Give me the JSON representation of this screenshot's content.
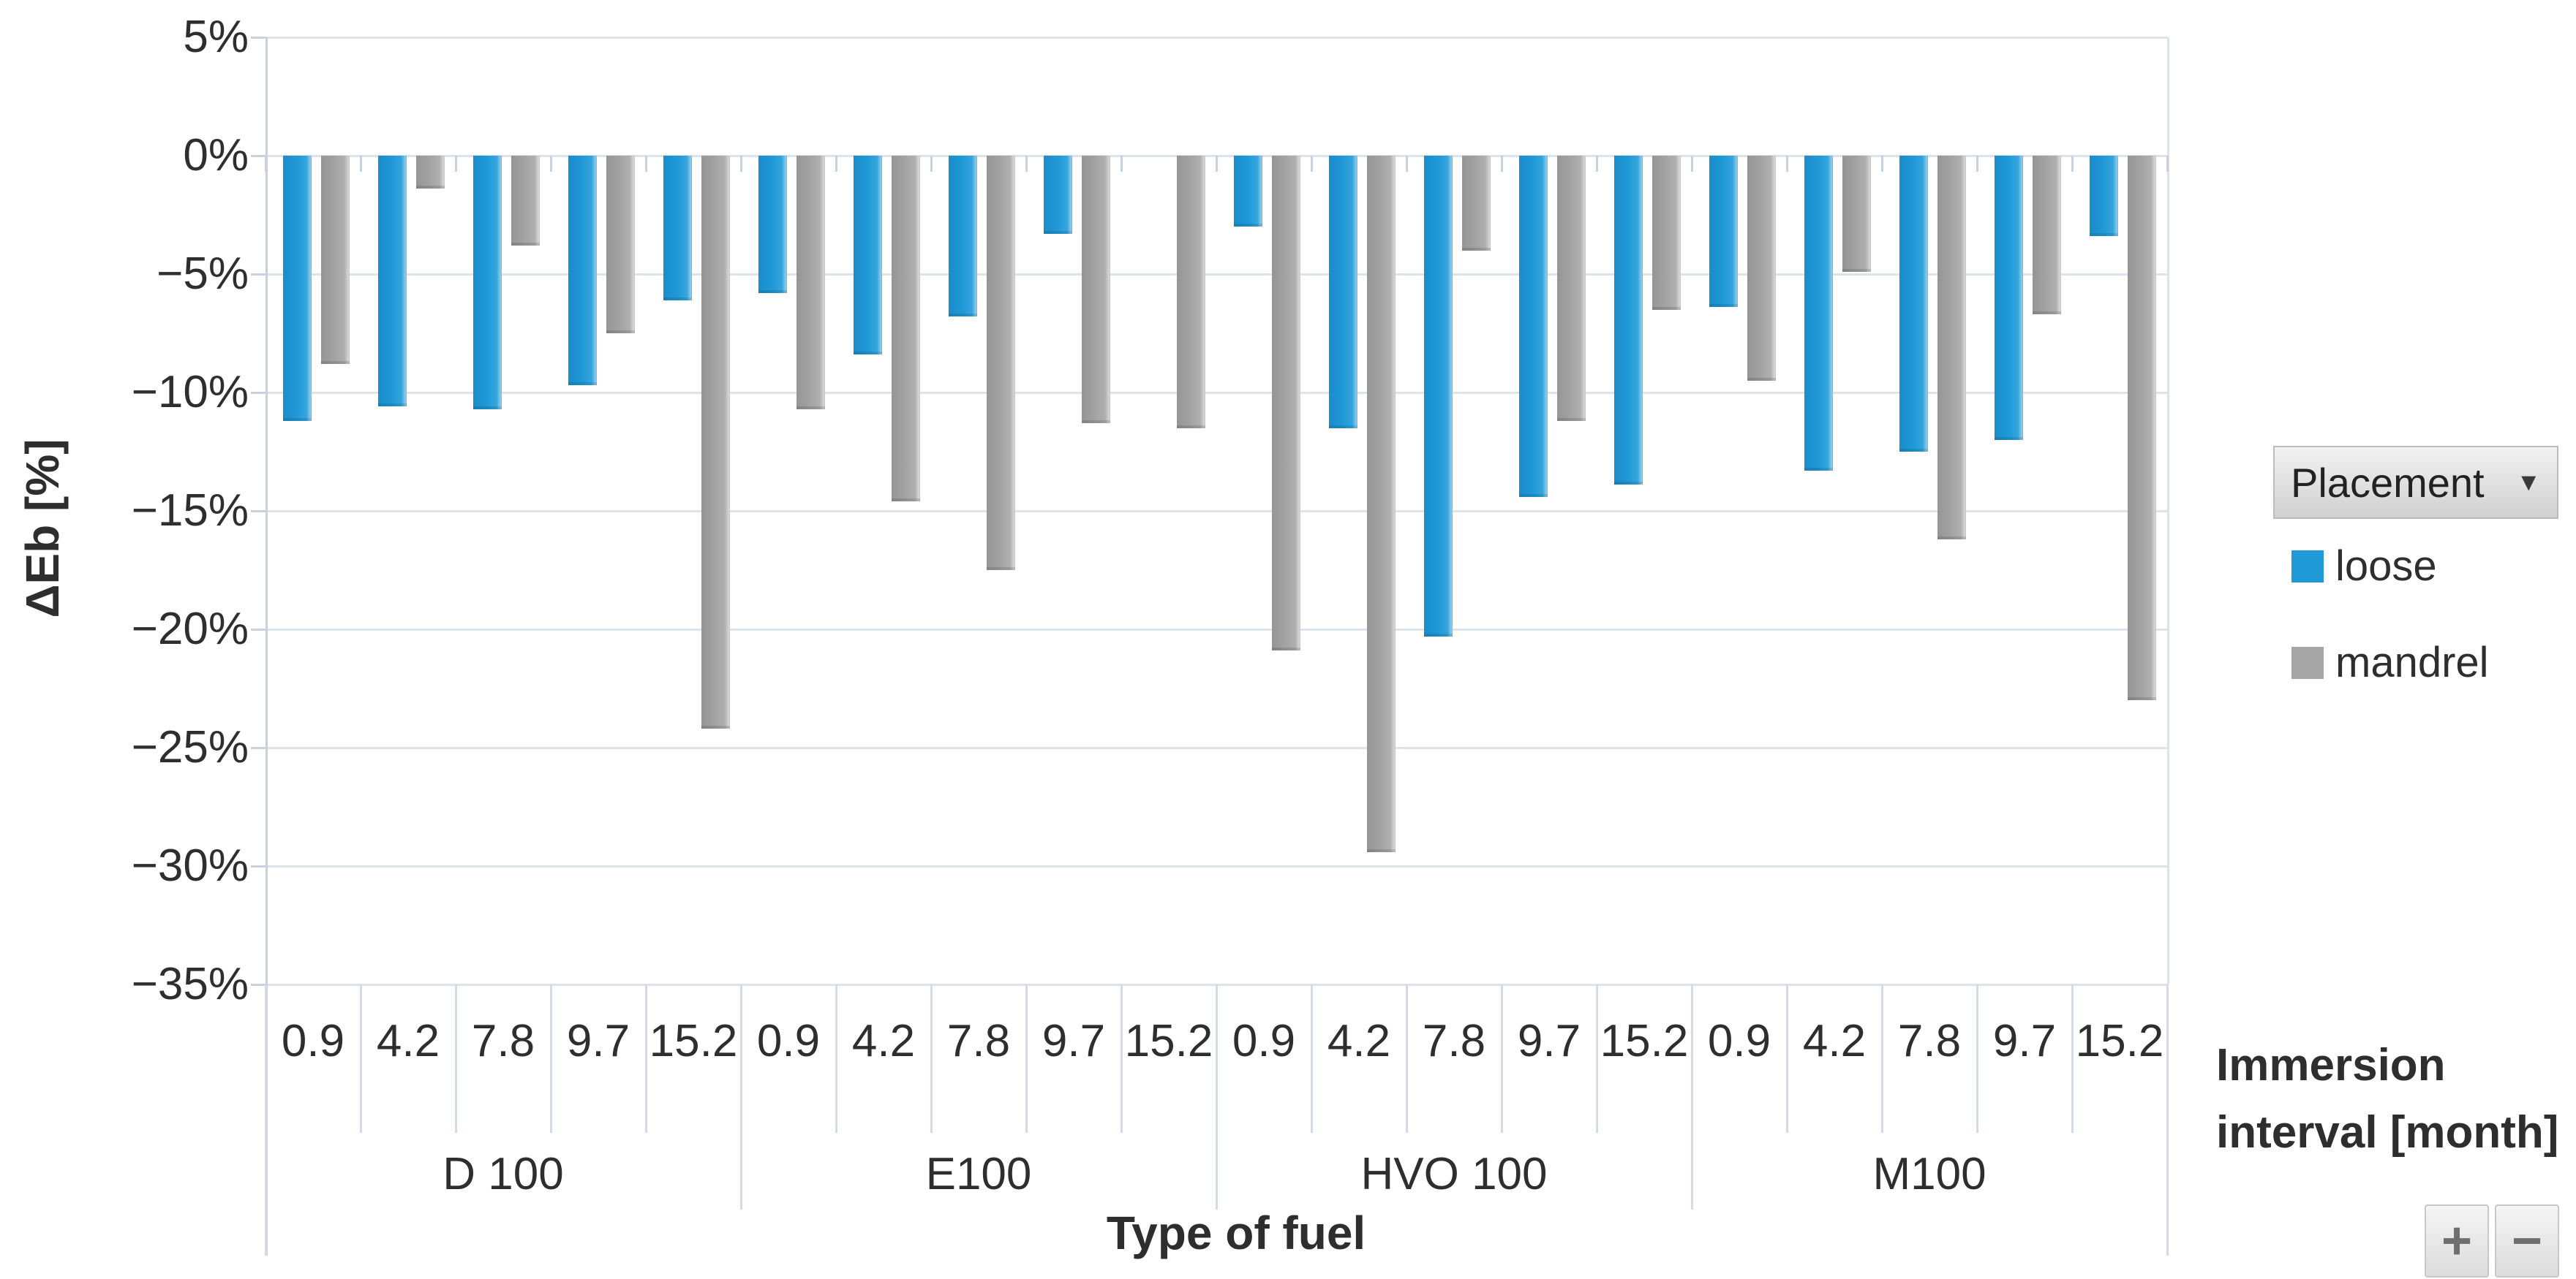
{
  "figure": {
    "y_axis_title": "ΔEb [%]",
    "x_axis_title": "Type of fuel",
    "secondary_axis_title_lines": [
      "Immersion",
      "interval [month]"
    ]
  },
  "legend": {
    "field_button_label": "Placement",
    "dropdown_arrow": "▼",
    "items": [
      {
        "label": "loose",
        "color": "#2099D7"
      },
      {
        "label": "mandrel",
        "color": "#A6A5A5"
      }
    ]
  },
  "zoom_controls": {
    "plus_label": "+",
    "minus_label": "−"
  },
  "chart_data": {
    "type": "bar",
    "title": "",
    "ylabel": "ΔEb [%]",
    "xlabel": "Type of fuel",
    "x2label": "Immersion interval [month]",
    "series_field": "Placement",
    "ylim": [
      -35,
      5
    ],
    "ytick_step": 5,
    "ytick_labels": [
      "5%",
      "0%",
      "−5%",
      "−10%",
      "−15%",
      "−20%",
      "−25%",
      "−30%",
      "−35%"
    ],
    "grid": true,
    "legend_position": "right",
    "groups": [
      {
        "fuel": "D 100",
        "intervals": [
          "0.9",
          "4.2",
          "7.8",
          "9.7",
          "15.2"
        ]
      },
      {
        "fuel": "E100",
        "intervals": [
          "0.9",
          "4.2",
          "7.8",
          "9.7",
          "15.2"
        ]
      },
      {
        "fuel": "HVO 100",
        "intervals": [
          "0.9",
          "4.2",
          "7.8",
          "9.7",
          "15.2"
        ]
      },
      {
        "fuel": "M100",
        "intervals": [
          "0.9",
          "4.2",
          "7.8",
          "9.7",
          "15.2"
        ]
      }
    ],
    "series": [
      {
        "name": "loose",
        "color": "#2099D7",
        "values": [
          -11.2,
          -10.6,
          -10.7,
          -9.7,
          -6.1,
          -5.8,
          -8.4,
          -6.8,
          -3.3,
          0,
          -3.0,
          -11.5,
          -20.3,
          -14.4,
          -13.9,
          -6.4,
          -13.3,
          -12.5,
          -12.0,
          -3.4
        ]
      },
      {
        "name": "mandrel",
        "color": "#A6A5A5",
        "values": [
          -8.8,
          -1.4,
          -3.8,
          -7.5,
          -24.2,
          -10.7,
          -14.6,
          -17.5,
          -11.3,
          -11.5,
          -20.9,
          -29.4,
          -4.0,
          -11.2,
          -6.5,
          -9.5,
          -4.9,
          -16.2,
          -6.7,
          -23.0
        ]
      }
    ]
  }
}
